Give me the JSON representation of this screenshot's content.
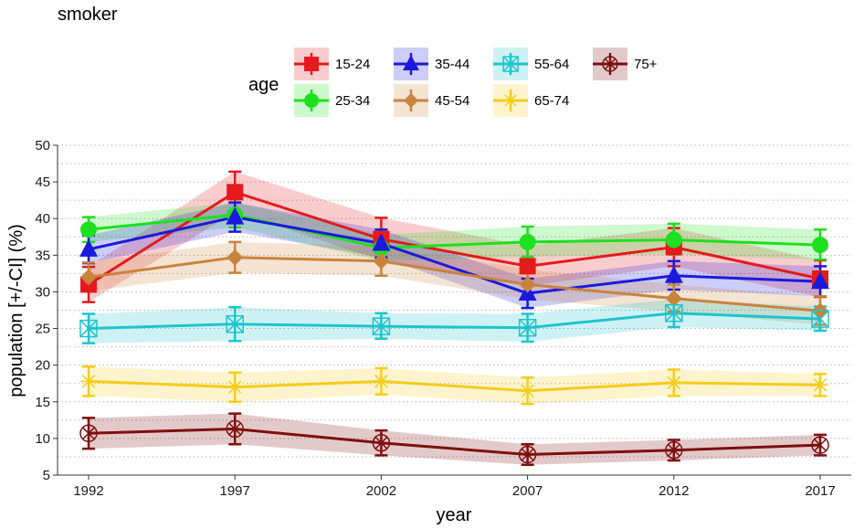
{
  "chart_data": {
    "type": "line",
    "title": "smoker",
    "xlabel": "year",
    "ylabel": "population [+/-CI] (%)",
    "x": [
      1992,
      1997,
      2002,
      2007,
      2012,
      2017
    ],
    "xticks": [
      "1992",
      "1997",
      "2002",
      "2007",
      "2012",
      "2017"
    ],
    "ylim": [
      5,
      50
    ],
    "yticks": [
      "5",
      "10",
      "15",
      "20",
      "25",
      "30",
      "35",
      "40",
      "45",
      "50"
    ],
    "ytick_values": [
      5,
      10,
      15,
      20,
      25,
      30,
      35,
      40,
      45,
      50
    ],
    "grid": "horizontal dotted",
    "legend": {
      "title": "age",
      "placement": "top"
    },
    "series": [
      {
        "name": "15-24",
        "color": "#e41a1c",
        "marker": "square",
        "values": [
          31.0,
          43.6,
          37.2,
          33.5,
          36.1,
          31.8
        ],
        "lower": [
          28.6,
          40.9,
          34.3,
          30.8,
          33.5,
          29.3
        ],
        "upper": [
          33.4,
          46.4,
          40.1,
          36.3,
          38.7,
          34.3
        ]
      },
      {
        "name": "25-34",
        "color": "#1ee01e",
        "marker": "circle",
        "values": [
          38.5,
          40.5,
          36.0,
          36.8,
          37.1,
          36.4
        ],
        "lower": [
          36.8,
          38.8,
          34.2,
          34.8,
          35.1,
          34.4
        ],
        "upper": [
          40.2,
          42.2,
          37.8,
          38.9,
          39.3,
          38.5
        ]
      },
      {
        "name": "35-44",
        "color": "#1a1add",
        "marker": "triangle",
        "values": [
          35.8,
          40.2,
          36.6,
          29.8,
          32.2,
          31.4
        ],
        "lower": [
          33.9,
          38.2,
          34.7,
          27.8,
          30.3,
          29.4
        ],
        "upper": [
          37.7,
          42.2,
          38.5,
          31.8,
          34.2,
          33.5
        ]
      },
      {
        "name": "45-54",
        "color": "#c8843d",
        "marker": "diamond",
        "values": [
          32.0,
          34.7,
          34.2,
          31.0,
          29.1,
          27.4
        ],
        "lower": [
          30.1,
          32.6,
          32.2,
          29.0,
          27.3,
          25.5
        ],
        "upper": [
          34.0,
          36.8,
          36.2,
          33.1,
          31.0,
          29.4
        ]
      },
      {
        "name": "55-64",
        "color": "#1fc4cc",
        "marker": "boxcross",
        "values": [
          25.0,
          25.6,
          25.3,
          25.1,
          27.1,
          26.3
        ],
        "lower": [
          23.0,
          23.3,
          23.6,
          23.2,
          25.2,
          24.7
        ],
        "upper": [
          27.0,
          27.9,
          27.1,
          27.0,
          29.0,
          28.0
        ]
      },
      {
        "name": "65-74",
        "color": "#f5cc1a",
        "marker": "star",
        "values": [
          17.8,
          17.0,
          17.8,
          16.5,
          17.6,
          17.3
        ],
        "lower": [
          15.8,
          15.0,
          16.0,
          14.7,
          15.8,
          15.8
        ],
        "upper": [
          19.8,
          19.0,
          19.6,
          18.3,
          19.4,
          18.8
        ]
      },
      {
        "name": "75+",
        "color": "#7f0f0f",
        "marker": "circlecross",
        "values": [
          10.7,
          11.3,
          9.4,
          7.8,
          8.4,
          9.1
        ],
        "lower": [
          8.6,
          9.2,
          7.7,
          6.4,
          7.0,
          7.7
        ],
        "upper": [
          12.8,
          13.4,
          11.1,
          9.2,
          9.8,
          10.5
        ]
      }
    ]
  }
}
